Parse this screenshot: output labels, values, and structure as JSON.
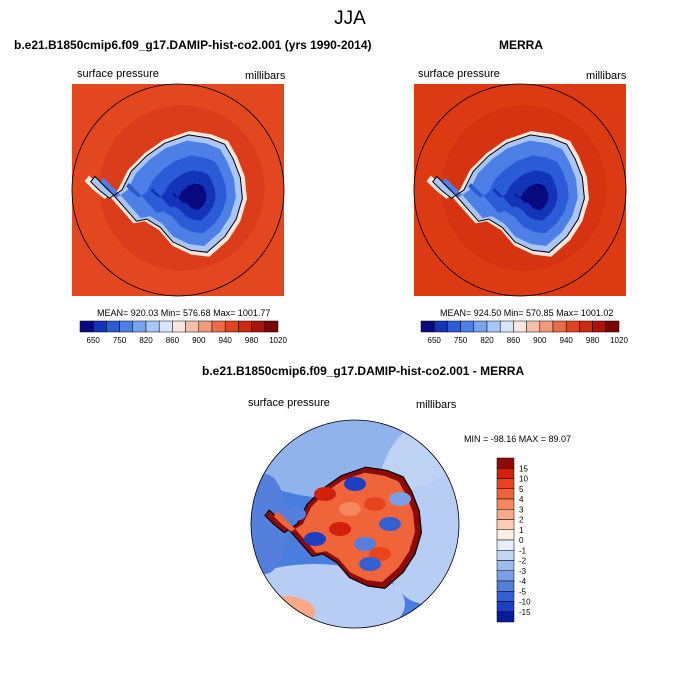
{
  "figure": {
    "title": "JJA"
  },
  "panels": [
    {
      "title": "b.e21.B1850cmip6.f09_g17.DAMIP-hist-co2.001 (yrs 1990-2014)",
      "left_label": "surface pressure",
      "right_label": "millibars",
      "stats": "MEAN= 920.03   Min= 576.68   Max= 1001.77"
    },
    {
      "title": "MERRA",
      "left_label": "surface pressure",
      "right_label": "millibars",
      "stats": "MEAN= 924.50   Min= 570.85   Max= 1001.02"
    },
    {
      "title": "b.e21.B1850cmip6.f09_g17.DAMIP-hist-co2.001 - MERRA",
      "left_label": "surface pressure",
      "right_label": "millibars",
      "stats": "MIN = -98.16 MAX =  89.07"
    }
  ],
  "chart_data": [
    {
      "type": "heatmap",
      "title": "b.e21.B1850cmip6.f09_g17.DAMIP-hist-co2.001 (yrs 1990-2014)",
      "variable": "surface pressure",
      "units": "millibars",
      "projection": "south polar stereographic",
      "mean": 920.03,
      "min": 576.68,
      "max": 1001.77,
      "colorbar_ticks": [
        "650",
        "750",
        "820",
        "860",
        "900",
        "940",
        "980",
        "1020"
      ],
      "colors": [
        "#0a0a80",
        "#1333b8",
        "#2b5bd6",
        "#4d7fe6",
        "#7aa3f0",
        "#a9c6f8",
        "#d6e6fc",
        "#fbe6dc",
        "#f6c0a8",
        "#f19a78",
        "#ea6d48",
        "#e04422",
        "#cc2a10",
        "#a81408",
        "#7a0505"
      ],
      "dominant_color": "#e3471f"
    },
    {
      "type": "heatmap",
      "title": "MERRA",
      "variable": "surface pressure",
      "units": "millibars",
      "projection": "south polar stereographic",
      "mean": 924.5,
      "min": 570.85,
      "max": 1001.02,
      "colorbar_ticks": [
        "650",
        "750",
        "820",
        "860",
        "900",
        "940",
        "980",
        "1020"
      ],
      "colors": [
        "#0a0a80",
        "#1333b8",
        "#2b5bd6",
        "#4d7fe6",
        "#7aa3f0",
        "#a9c6f8",
        "#d6e6fc",
        "#fbe6dc",
        "#f6c0a8",
        "#f19a78",
        "#ea6d48",
        "#e04422",
        "#cc2a10",
        "#a81408",
        "#7a0505"
      ],
      "dominant_color": "#dc3a12"
    },
    {
      "type": "heatmap",
      "title": "b.e21.B1850cmip6.f09_g17.DAMIP-hist-co2.001 - MERRA",
      "variable": "surface pressure",
      "units": "millibars",
      "projection": "south polar stereographic",
      "min": -98.16,
      "max": 89.07,
      "colorbar_ticks": [
        "15",
        "10",
        "5",
        "4",
        "3",
        "2",
        "1",
        "0",
        "-1",
        "-2",
        "-3",
        "-4",
        "-5",
        "-10",
        "-15"
      ],
      "colors": [
        "#8c0a0a",
        "#d1200c",
        "#e8441e",
        "#f0643a",
        "#f5875e",
        "#f9a987",
        "#fcccb4",
        "#feeee6",
        "#e6eefb",
        "#c3d6f5",
        "#9dbcee",
        "#7a9fe6",
        "#547fdc",
        "#3560d2",
        "#1d3fc4",
        "#0a1a9c"
      ],
      "dominant_color": "#4a7ede"
    }
  ]
}
